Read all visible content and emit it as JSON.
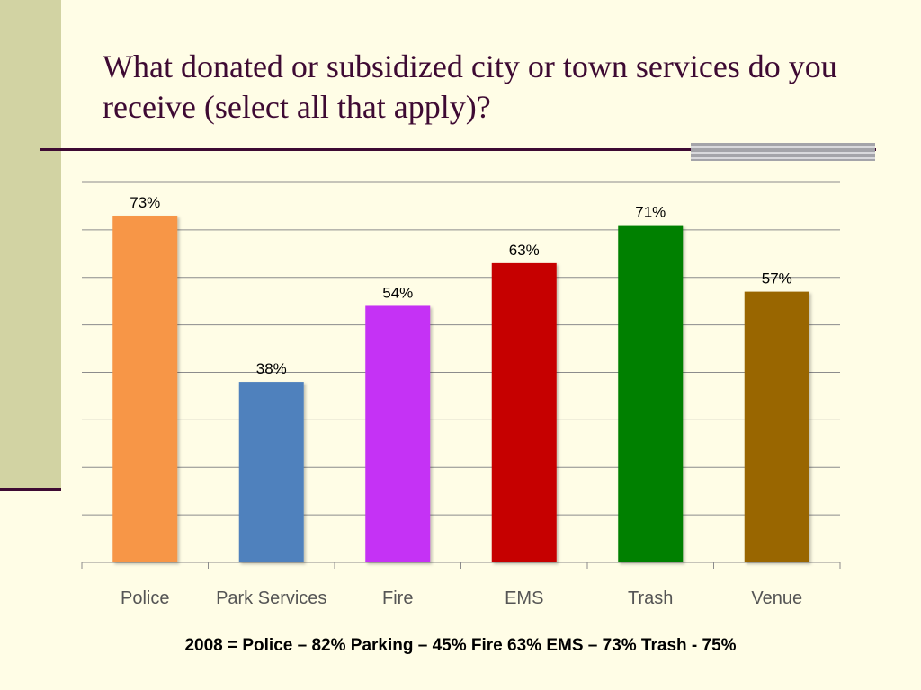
{
  "slide": {
    "title": "What donated or subsidized city or town services do you receive (select all that apply)?",
    "footnote": "2008 = Police – 82% Parking – 45% Fire 63% EMS – 73% Trash - 75%"
  },
  "colors": {
    "background": "#fffde6",
    "title": "#3e0a33",
    "side_panel": "#d2d3a3",
    "gridline": "#8c8c8c"
  },
  "chart_data": {
    "type": "bar",
    "categories": [
      "Police",
      "Park Services",
      "Fire",
      "EMS",
      "Trash",
      "Venue"
    ],
    "values": [
      73,
      38,
      54,
      63,
      71,
      57
    ],
    "data_labels": [
      "73%",
      "38%",
      "54%",
      "63%",
      "71%",
      "57%"
    ],
    "bar_colors": [
      "#f79646",
      "#4f81bd",
      "#c532f5",
      "#c60000",
      "#008000",
      "#996600"
    ],
    "ylim": [
      0,
      80
    ],
    "grid": true,
    "legend": "none",
    "title": "",
    "xlabel": "",
    "ylabel": ""
  }
}
